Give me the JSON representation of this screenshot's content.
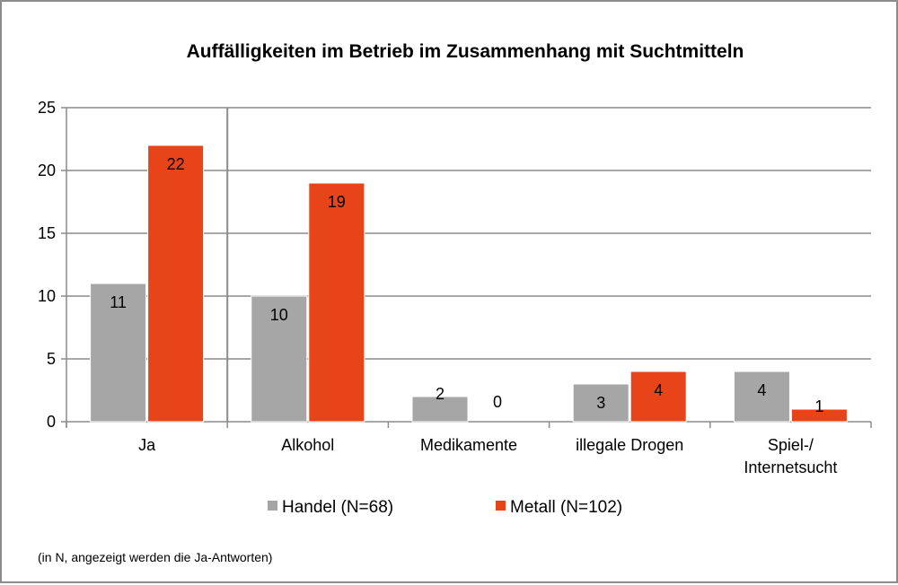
{
  "chart_data": {
    "type": "bar",
    "title": "Auffälligkeiten im Betrieb im Zusammenhang mit Suchtmitteln",
    "categories": [
      [
        "Ja"
      ],
      [
        "Alkohol"
      ],
      [
        "Medikamente"
      ],
      [
        "illegale Drogen"
      ],
      [
        "Spiel-/",
        "Internetsucht"
      ]
    ],
    "series": [
      {
        "name": "Handel (N=68)",
        "color": "#a6a6a6",
        "values": [
          11,
          10,
          2,
          3,
          4
        ]
      },
      {
        "name": "Metall (N=102)",
        "color": "#e8441a",
        "values": [
          22,
          19,
          0,
          4,
          1
        ]
      }
    ],
    "ylim": [
      0,
      25
    ],
    "yticks": [
      0,
      5,
      10,
      15,
      20,
      25
    ],
    "grid": true,
    "legend_position": "bottom",
    "note": "(in N, angezeigt werden die Ja-Antworten)"
  }
}
